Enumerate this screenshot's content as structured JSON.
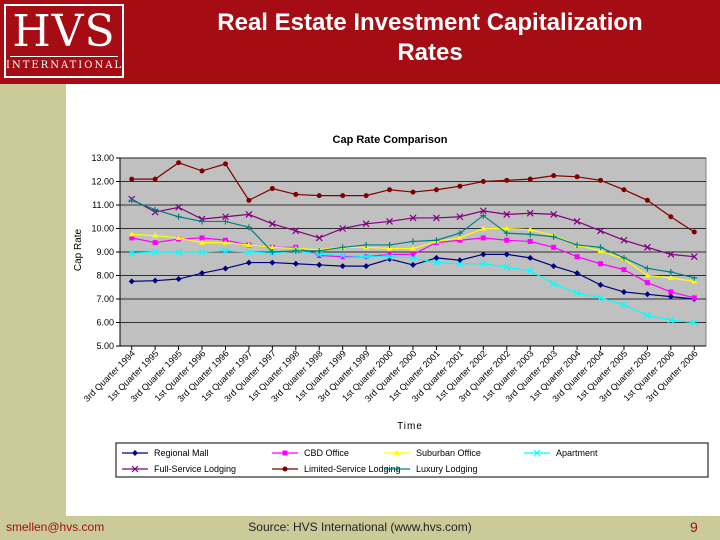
{
  "header": {
    "logo_main": "HVS",
    "logo_sub": "INTERNATIONAL",
    "title_line1": "Real Estate Investment Capitalization",
    "title_line2": "Rates"
  },
  "footer": {
    "email": "smellen@hvs.com",
    "source": "Source: HVS International (www.hvs.com)",
    "page": "9"
  },
  "colors": {
    "brand_red": "#a50c14",
    "side_band": "#cbcb9a",
    "plot_bg": "#c0c0c0"
  },
  "chart_data": {
    "type": "line",
    "title": "Cap Rate Comparison",
    "xlabel": "Time",
    "ylabel": "Cap Rate",
    "ylim": [
      5.0,
      13.0
    ],
    "yticks": [
      "5.00",
      "6.00",
      "7.00",
      "8.00",
      "9.00",
      "10.00",
      "11.00",
      "12.00",
      "13.00"
    ],
    "grid": true,
    "legend_position": "bottom",
    "categories": [
      "3rd Quarter 1994",
      "1st Quarter 1995",
      "3rd Quarter 1995",
      "1st Quarter 1996",
      "3rd Quarter 1996",
      "1st Quarter 1997",
      "3rd Quarter 1997",
      "1st Quarter 1998",
      "3rd Quarter 1998",
      "1st Quarter 1999",
      "3rd Quarter 1999",
      "1st Quarter 2000",
      "3rd Quarter 2000",
      "1st Quarter 2001",
      "3rd Quarter 2001",
      "1st Quarter 2002",
      "3rd Quarter 2002",
      "1st Quarter 2003",
      "3rd Quarter 2003",
      "1st Quarter 2004",
      "3rd Quarter 2004",
      "1st Quarter 2005",
      "3rd Quarter 2005",
      "1st Quarter 2006",
      "3rd Quarter 2006"
    ],
    "series": [
      {
        "name": "Regional Mall",
        "color": "#000080",
        "marker": "diamond",
        "values": [
          7.75,
          7.78,
          7.85,
          8.1,
          8.3,
          8.55,
          8.55,
          8.5,
          8.45,
          8.4,
          8.4,
          8.7,
          8.45,
          8.75,
          8.65,
          8.9,
          8.9,
          8.75,
          8.4,
          8.1,
          7.6,
          7.3,
          7.2,
          7.1,
          7.0
        ]
      },
      {
        "name": "CBD Office",
        "color": "#ff00ff",
        "marker": "square",
        "values": [
          9.6,
          9.4,
          9.55,
          9.6,
          9.5,
          9.3,
          9.2,
          9.2,
          8.85,
          8.8,
          8.8,
          8.9,
          8.9,
          9.4,
          9.5,
          9.6,
          9.5,
          9.45,
          9.2,
          8.8,
          8.5,
          8.25,
          7.7,
          7.3,
          7.05
        ]
      },
      {
        "name": "Suburban Office",
        "color": "#ffff00",
        "marker": "triangle",
        "values": [
          9.75,
          9.7,
          9.6,
          9.4,
          9.4,
          9.3,
          9.2,
          9.15,
          9.1,
          9.2,
          9.2,
          9.15,
          9.15,
          9.45,
          9.6,
          10.0,
          10.0,
          9.95,
          9.7,
          9.3,
          9.05,
          8.7,
          8.0,
          7.9,
          7.75
        ]
      },
      {
        "name": "Apartment",
        "color": "#00ffff",
        "marker": "x",
        "values": [
          8.95,
          9.0,
          9.0,
          9.0,
          9.05,
          9.0,
          8.95,
          9.05,
          8.9,
          8.85,
          8.8,
          8.8,
          8.75,
          8.55,
          8.5,
          8.5,
          8.35,
          8.2,
          7.65,
          7.25,
          7.05,
          6.75,
          6.3,
          6.1,
          6.0
        ]
      },
      {
        "name": "Full-Service Lodging",
        "color": "#800080",
        "marker": "x",
        "values": [
          11.25,
          10.7,
          10.9,
          10.4,
          10.5,
          10.6,
          10.2,
          9.9,
          9.6,
          10.0,
          10.2,
          10.3,
          10.45,
          10.45,
          10.5,
          10.75,
          10.6,
          10.65,
          10.6,
          10.3,
          9.9,
          9.5,
          9.2,
          8.9,
          8.8
        ]
      },
      {
        "name": "Limited-Service Lodging",
        "color": "#800000",
        "marker": "circle",
        "values": [
          12.1,
          12.1,
          12.8,
          12.45,
          12.75,
          11.2,
          11.7,
          11.45,
          11.4,
          11.4,
          11.4,
          11.65,
          11.55,
          11.65,
          11.8,
          12.0,
          12.05,
          12.1,
          12.25,
          12.2,
          12.05,
          11.65,
          11.2,
          10.5,
          9.85
        ]
      },
      {
        "name": "Luxury Lodging",
        "color": "#008080",
        "marker": "plus",
        "values": [
          11.2,
          10.8,
          10.5,
          10.3,
          10.3,
          10.05,
          9.0,
          9.05,
          9.05,
          9.2,
          9.3,
          9.3,
          9.45,
          9.5,
          9.8,
          10.55,
          9.8,
          9.75,
          9.65,
          9.3,
          9.2,
          8.75,
          8.3,
          8.15,
          7.9
        ]
      }
    ]
  }
}
